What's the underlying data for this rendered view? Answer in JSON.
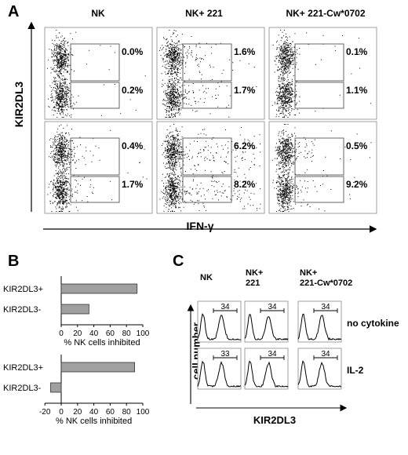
{
  "panelA": {
    "letter": "A",
    "columns": [
      "NK",
      "NK+ 221",
      "NK+ 221-Cw*0702"
    ],
    "y_axis_label": "KIR2DL3",
    "x_axis_label": "IFN-γ",
    "rows": [
      [
        {
          "upper": "0.0%",
          "lower": "0.2%"
        },
        {
          "upper": "1.6%",
          "lower": "1.7%"
        },
        {
          "upper": "0.1%",
          "lower": "1.1%"
        }
      ],
      [
        {
          "upper": "0.4%",
          "lower": "1.7%"
        },
        {
          "upper": "6.2%",
          "lower": "8.2%"
        },
        {
          "upper": "0.5%",
          "lower": "9.2%"
        }
      ]
    ]
  },
  "panelB": {
    "letter": "B",
    "chart_data": [
      {
        "type": "bar",
        "orientation": "horizontal",
        "categories": [
          "KIR2DL3+",
          "KIR2DL3-"
        ],
        "values": [
          93,
          34
        ],
        "xlabel": "% NK cells inhibited",
        "xlim": [
          0,
          100
        ],
        "xticks": [
          0,
          20,
          40,
          60,
          80,
          100
        ],
        "bar_color": "#a0a0a0"
      },
      {
        "type": "bar",
        "orientation": "horizontal",
        "categories": [
          "KIR2DL3+",
          "KIR2DL3-"
        ],
        "values": [
          90,
          -13
        ],
        "xlabel": "% NK cells inhibited",
        "xlim": [
          -20,
          100
        ],
        "xticks": [
          -20,
          0,
          20,
          40,
          60,
          80,
          100
        ],
        "bar_color": "#a0a0a0"
      }
    ]
  },
  "panelC": {
    "letter": "C",
    "columns": [
      "NK",
      "NK+\n221",
      "NK+\n221-Cw*0702"
    ],
    "y_axis_label": "cell number",
    "x_axis_label": "KIR2DL3",
    "row_labels": [
      "no cytokine",
      "IL-2"
    ],
    "gate_values": [
      [
        "34",
        "34",
        "34"
      ],
      [
        "33",
        "34",
        "34"
      ]
    ]
  }
}
